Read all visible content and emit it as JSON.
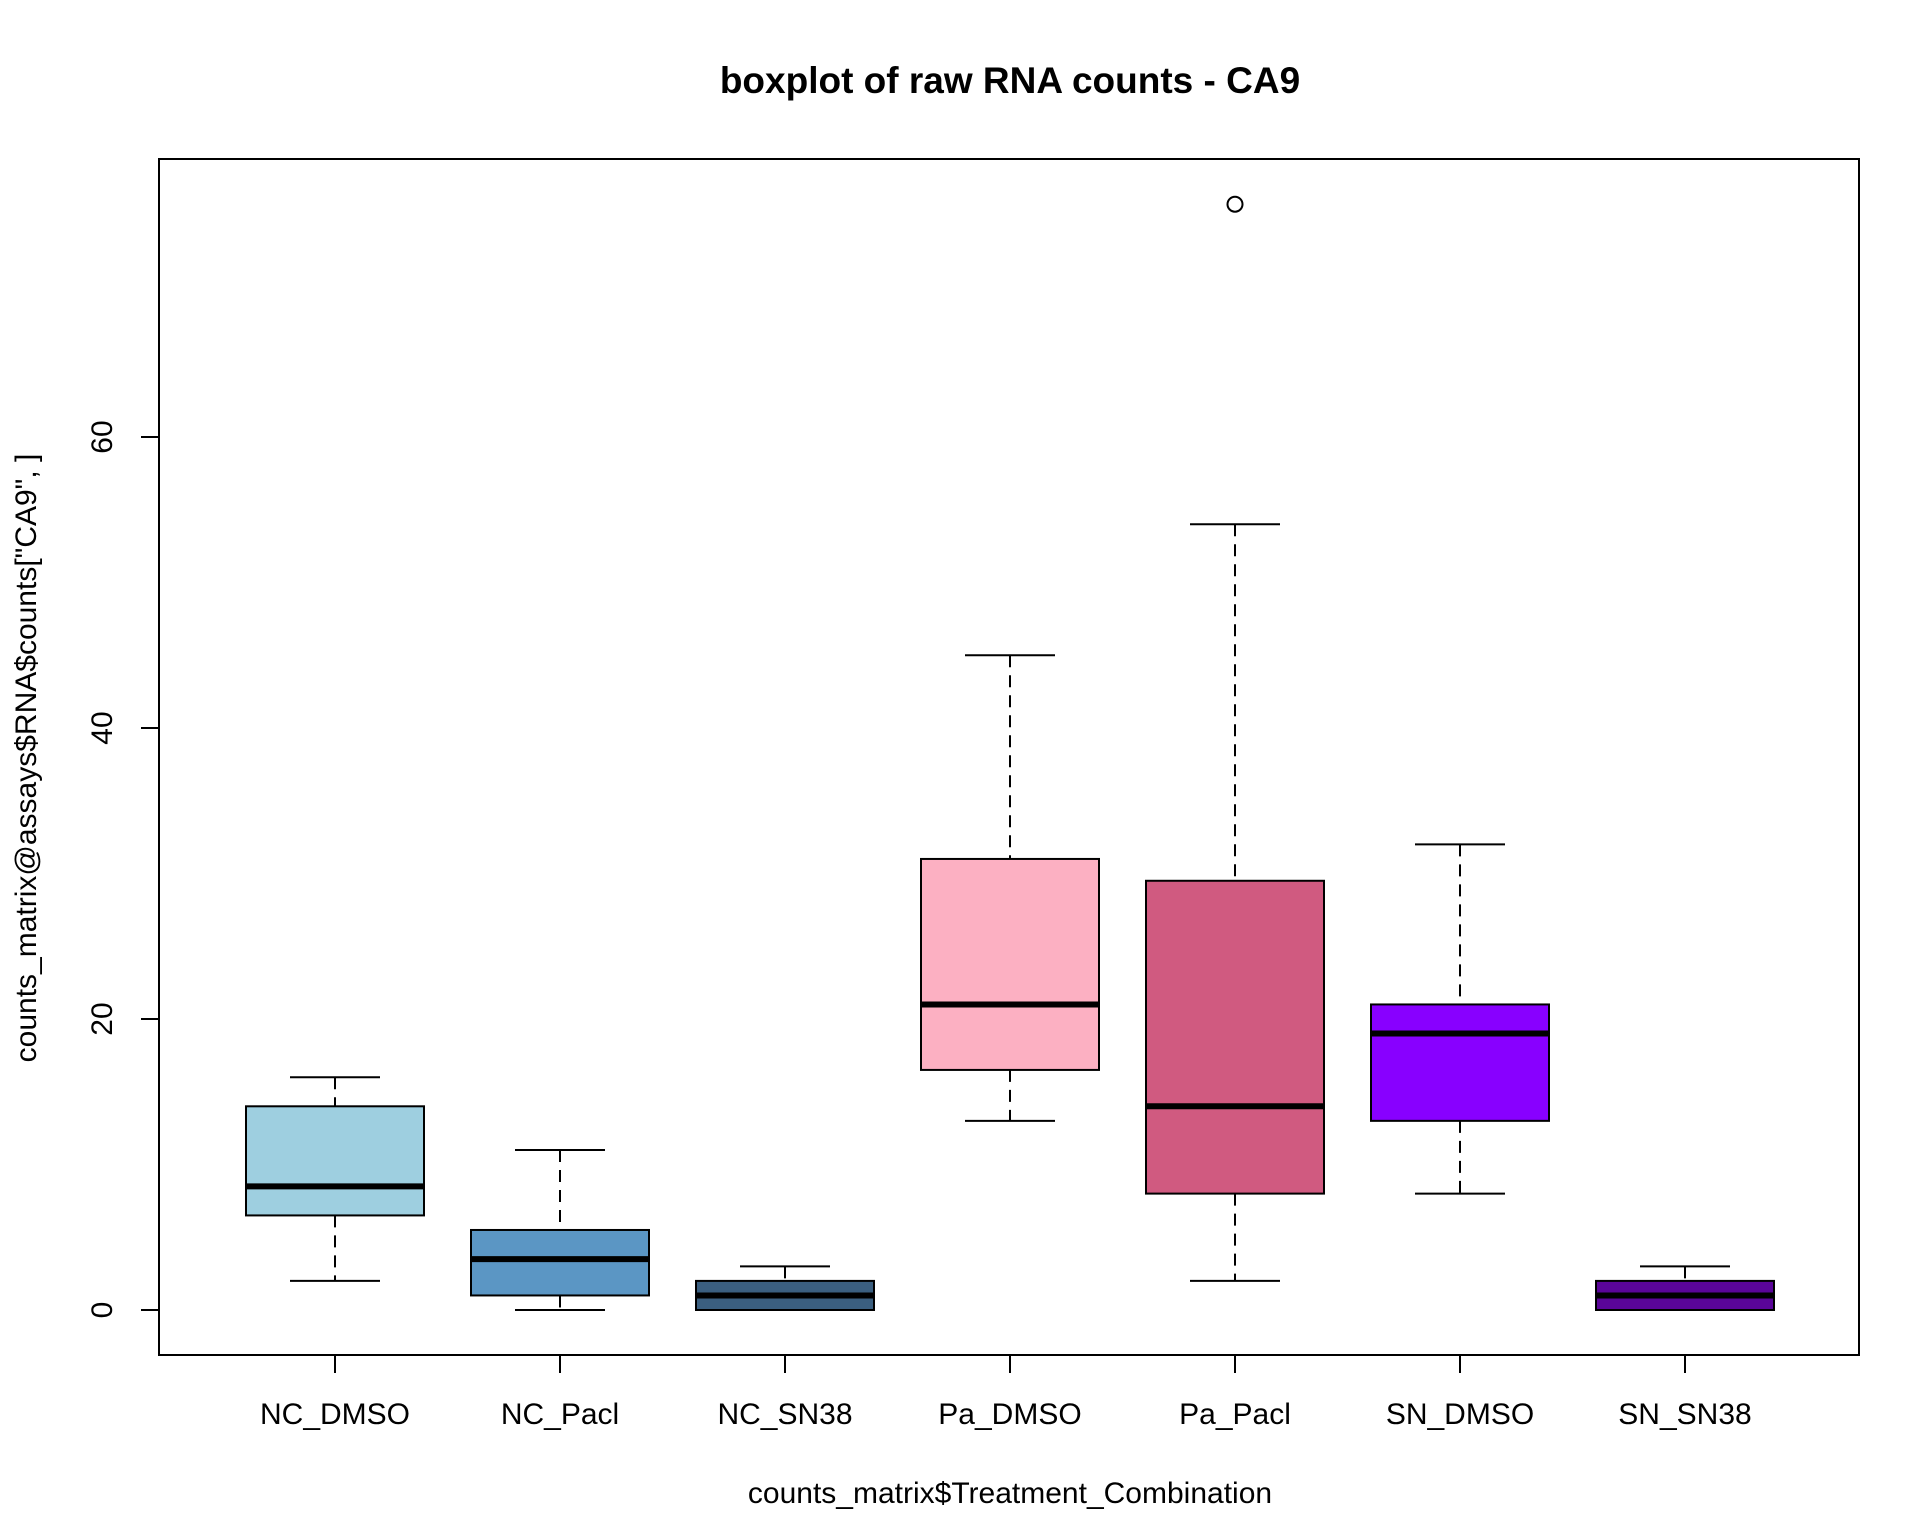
{
  "chart_data": {
    "type": "boxplot",
    "title": "boxplot of raw RNA counts - CA9",
    "xlabel": "counts_matrix$Treatment_Combination",
    "ylabel": "counts_matrix@assays$RNA$counts[\"CA9\", ]",
    "ylim": [
      -3,
      79
    ],
    "yticks": [
      "0",
      "20",
      "40",
      "60"
    ],
    "grid": false,
    "legend": "none",
    "categories": [
      "NC_DMSO",
      "NC_Pacl",
      "NC_SN38",
      "Pa_DMSO",
      "Pa_Pacl",
      "SN_DMSO",
      "SN_SN38"
    ],
    "boxes": [
      {
        "category": "NC_DMSO",
        "whisker_low": 2,
        "q1": 6.5,
        "median": 8.5,
        "q3": 14,
        "whisker_high": 16,
        "outliers": [],
        "color": "#9ECFE0"
      },
      {
        "category": "NC_Pacl",
        "whisker_low": 0,
        "q1": 1,
        "median": 3.5,
        "q3": 5.5,
        "whisker_high": 11,
        "outliers": [],
        "color": "#5B96C4"
      },
      {
        "category": "NC_SN38",
        "whisker_low": 0,
        "q1": 0,
        "median": 1,
        "q3": 2,
        "whisker_high": 3,
        "outliers": [],
        "color": "#3B5F80"
      },
      {
        "category": "Pa_DMSO",
        "whisker_low": 13,
        "q1": 16.5,
        "median": 21,
        "q3": 31,
        "whisker_high": 45,
        "outliers": [],
        "color": "#FCB0C2"
      },
      {
        "category": "Pa_Pacl",
        "whisker_low": 2,
        "q1": 8,
        "median": 14,
        "q3": 29.5,
        "whisker_high": 54,
        "outliers": [
          76
        ],
        "color": "#D05A80"
      },
      {
        "category": "SN_DMSO",
        "whisker_low": 8,
        "q1": 13,
        "median": 19,
        "q3": 21,
        "whisker_high": 32,
        "outliers": [],
        "color": "#8800FF"
      },
      {
        "category": "SN_SN38",
        "whisker_low": 0,
        "q1": 0,
        "median": 1,
        "q3": 2,
        "whisker_high": 3,
        "outliers": [],
        "color": "#5A0599"
      }
    ]
  }
}
